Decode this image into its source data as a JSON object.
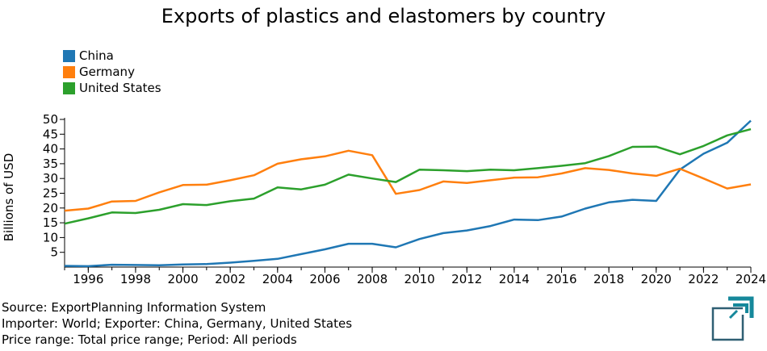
{
  "chart_data": {
    "type": "line",
    "title": "Exports of plastics and elastomers by country",
    "ylabel": "Billions of USD",
    "xlabel": "",
    "xlim": [
      1995,
      2024
    ],
    "ylim": [
      0,
      50
    ],
    "grid": false,
    "legend_position": "top-left",
    "x": [
      1995,
      1996,
      1997,
      1998,
      1999,
      2000,
      2001,
      2002,
      2003,
      2004,
      2005,
      2006,
      2007,
      2008,
      2009,
      2010,
      2011,
      2012,
      2013,
      2014,
      2015,
      2016,
      2017,
      2018,
      2019,
      2020,
      2021,
      2022,
      2023,
      2024
    ],
    "x_ticks": [
      "1996",
      "1998",
      "2000",
      "2002",
      "2004",
      "2006",
      "2008",
      "2010",
      "2012",
      "2014",
      "2016",
      "2018",
      "2020",
      "2022",
      "2024"
    ],
    "y_ticks": [
      "5",
      "10",
      "15",
      "20",
      "25",
      "30",
      "35",
      "40",
      "45",
      "50"
    ],
    "series": [
      {
        "name": "China",
        "color": "#1f77b4",
        "values": [
          0.4,
          0.3,
          0.8,
          0.7,
          0.6,
          0.9,
          1.0,
          1.5,
          2.1,
          2.8,
          4.4,
          6.0,
          7.9,
          7.9,
          6.7,
          9.5,
          11.5,
          12.4,
          13.9,
          16.1,
          15.9,
          17.1,
          19.8,
          21.9,
          22.8,
          22.4,
          33.0,
          38.4,
          42.1,
          49.6
        ]
      },
      {
        "name": "Germany",
        "color": "#ff7f0e",
        "values": [
          19.1,
          19.8,
          22.2,
          22.4,
          25.3,
          27.8,
          27.9,
          29.4,
          31.1,
          35.0,
          36.5,
          37.5,
          39.4,
          37.9,
          24.8,
          26.1,
          29.0,
          28.5,
          29.4,
          30.3,
          30.4,
          31.7,
          33.5,
          32.9,
          31.7,
          30.9,
          33.3,
          30.0,
          26.6,
          28.0
        ]
      },
      {
        "name": "United States",
        "color": "#2ca02c",
        "values": [
          14.7,
          16.5,
          18.5,
          18.3,
          19.4,
          21.3,
          21.0,
          22.3,
          23.2,
          27.0,
          26.3,
          27.9,
          31.3,
          30.0,
          28.8,
          33.0,
          32.8,
          32.5,
          33.0,
          32.8,
          33.5,
          34.3,
          35.2,
          37.6,
          40.7,
          40.8,
          38.2,
          41.0,
          44.6,
          46.7
        ]
      }
    ]
  },
  "footer": {
    "source": "Source: ExportPlanning Information System",
    "filter1": "Importer: World; Exporter: China, Germany, United States",
    "filter2": "Price range: Total price range; Period: All periods"
  },
  "logo": {
    "icon": "exportplanning-logo-icon",
    "colors": [
      "#16889b",
      "#2f5f73"
    ]
  }
}
